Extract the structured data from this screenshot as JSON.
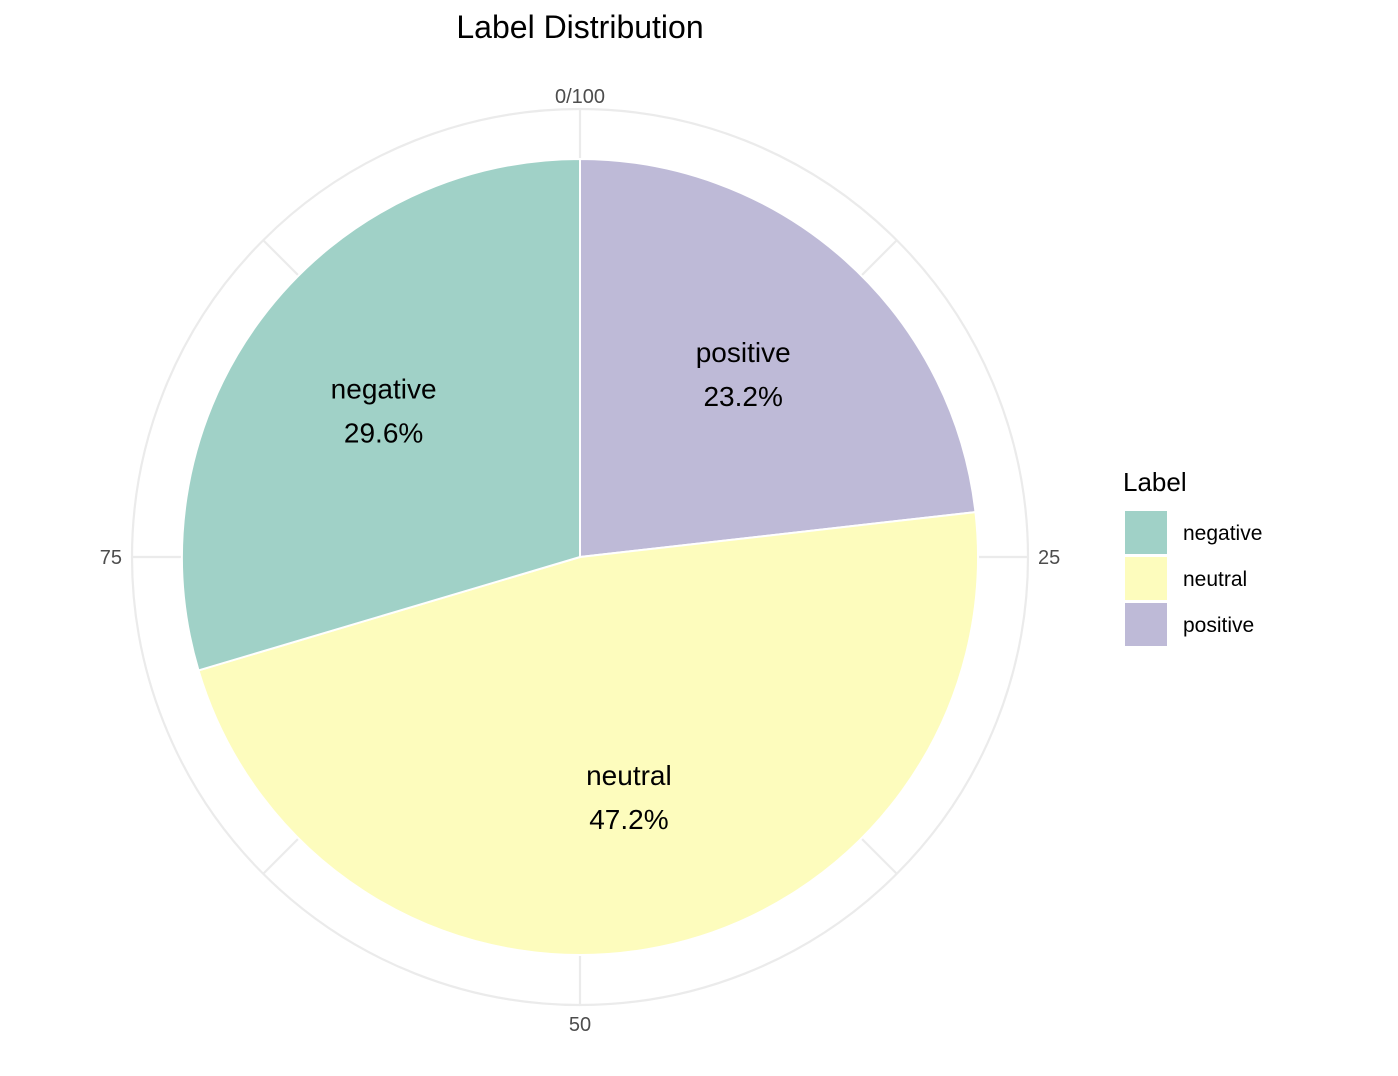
{
  "chart_data": {
    "type": "pie",
    "title": "Label Distribution",
    "categories": [
      "negative",
      "neutral",
      "positive"
    ],
    "values": [
      29.6,
      47.2,
      23.2
    ],
    "value_labels": [
      "29.6%",
      "47.2%",
      "23.2%"
    ],
    "colors": [
      "#a0d1c7",
      "#fdfcbd",
      "#bebad7"
    ],
    "slice_order_clockwise_from_top": [
      "positive",
      "neutral",
      "negative"
    ],
    "angular_axis": {
      "range": [
        0,
        100
      ],
      "tick_labels": [
        "0/100",
        "25",
        "50",
        "75"
      ],
      "tick_values": [
        0,
        25,
        50,
        75
      ]
    },
    "legend": {
      "title": "Label",
      "position": "right",
      "items": [
        "negative",
        "neutral",
        "positive"
      ]
    },
    "grid": true
  }
}
